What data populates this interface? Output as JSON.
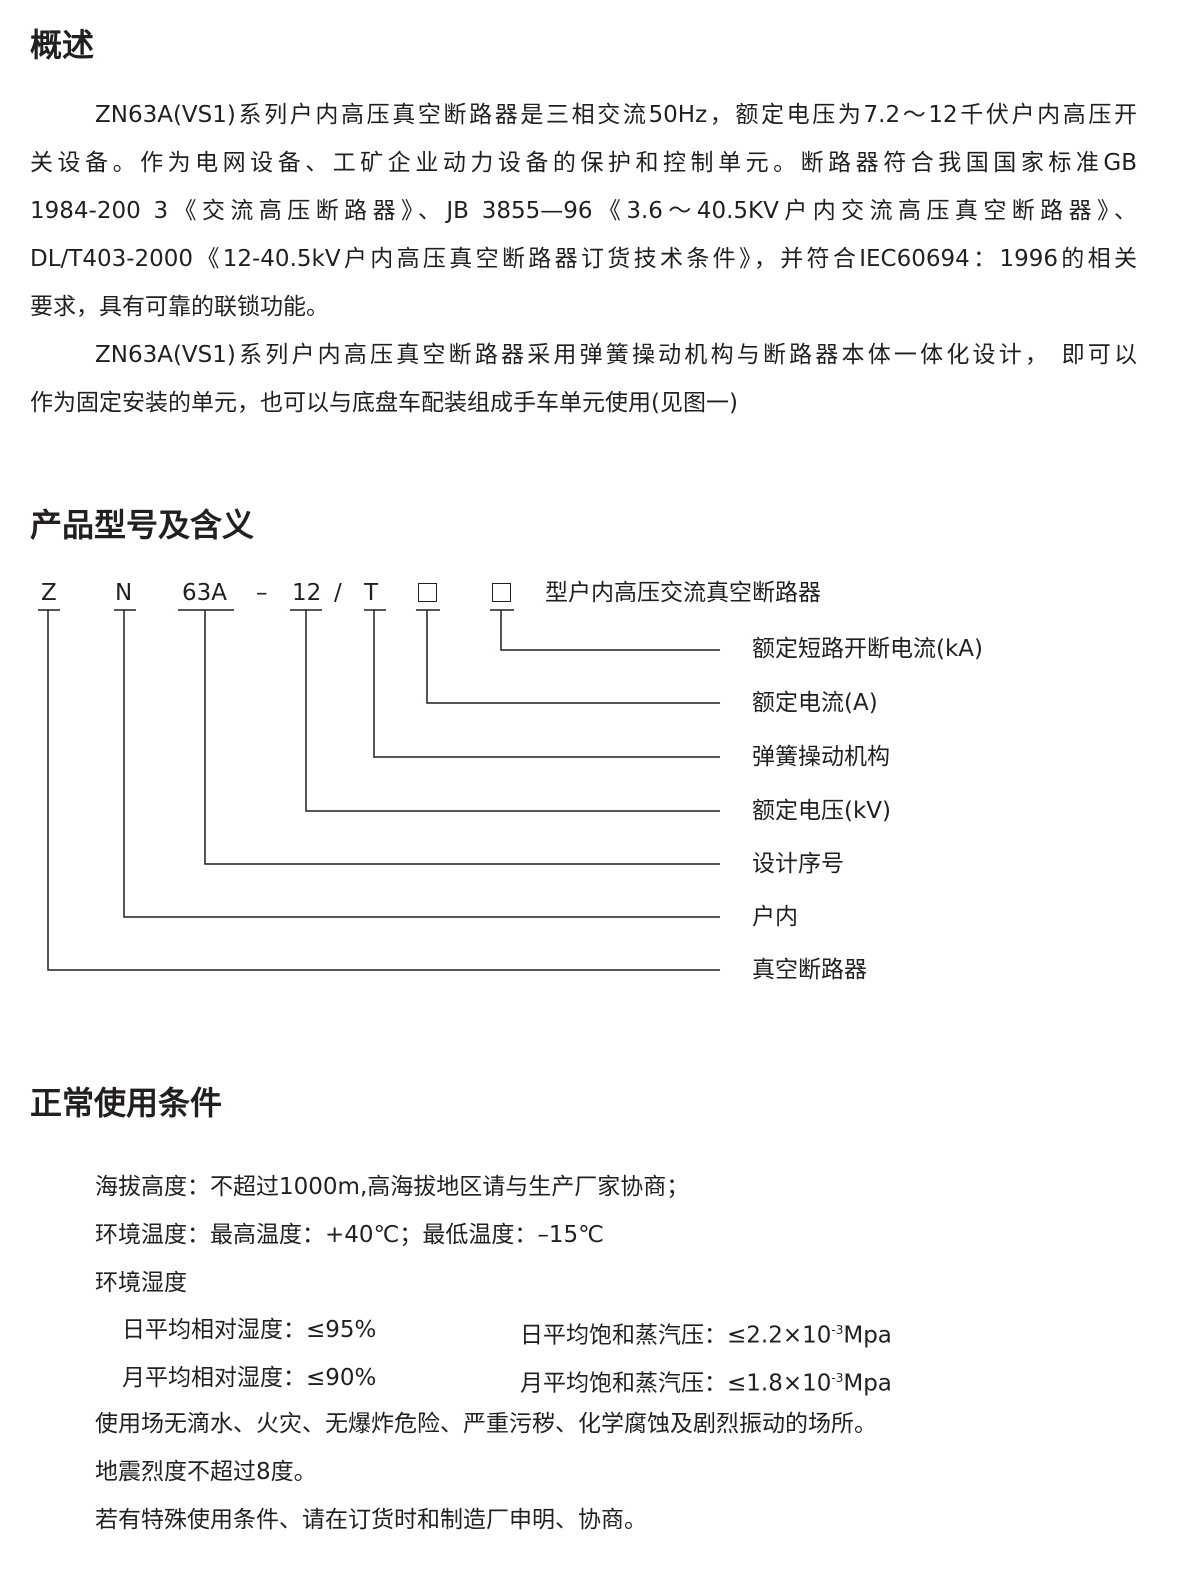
{
  "overview": {
    "heading": "概述",
    "lines": [
      "ZN63A(VS1)系列户内高压真空断路器是三相交流50Hz，额定电压为7.2～12千伏户内高压开",
      "关设备。作为电网设备、工矿企业动力设备的保护和控制单元。断路器符合我国国家标准GB",
      "1984-200 3《交流高压断路器》、JB 3855—96《3.6～40.5KV户内交流高压真空断路器》、",
      "DL/T403-2000《12-40.5kV户内高压真空断路器订货技术条件》，并符合IEC60694：1996的相关",
      "要求，具有可靠的联锁功能。",
      "ZN63A(VS1)系列户内高压真空断路器采用弹簧操动机构与断路器本体一体化设计， 即可以",
      "作为固定安装的单元，也可以与底盘车配装组成手车单元使用(见图一)"
    ]
  },
  "model": {
    "heading": "产品型号及含义",
    "codes": [
      "Z",
      "N",
      "63A",
      "–",
      "12",
      "/",
      "T"
    ],
    "suffix": "型户内高压交流真空断路器",
    "labels": [
      "额定短路开断电流(kA)",
      "额定电流(A)",
      "弹簧操动机构",
      "额定电压(kV)",
      "设计序号",
      "户内",
      "真空断路器"
    ]
  },
  "conditions": {
    "heading": "正常使用条件",
    "altitude": "海拔高度：不超过1000m,高海拔地区请与生产厂家协商；",
    "temperature": "环境温度：最高温度：+40℃；最低温度：–15℃",
    "humidity": "环境湿度",
    "daily_rh": "日平均相对湿度：≤95%",
    "daily_vp_prefix": "日平均饱和蒸汽压：≤2.2×10",
    "monthly_rh": "月平均相对湿度：≤90%",
    "monthly_vp_prefix": "月平均饱和蒸汽压：≤1.8×10",
    "exponent": "-3",
    "unit": "Mpa",
    "environment": "使用场无滴水、火灾、无爆炸危险、严重污秽、化学腐蚀及剧烈振动的场所。",
    "seismic": "地震烈度不超过8度。",
    "special": "若有特殊使用条件、请在订货时和制造厂申明、协商。"
  }
}
